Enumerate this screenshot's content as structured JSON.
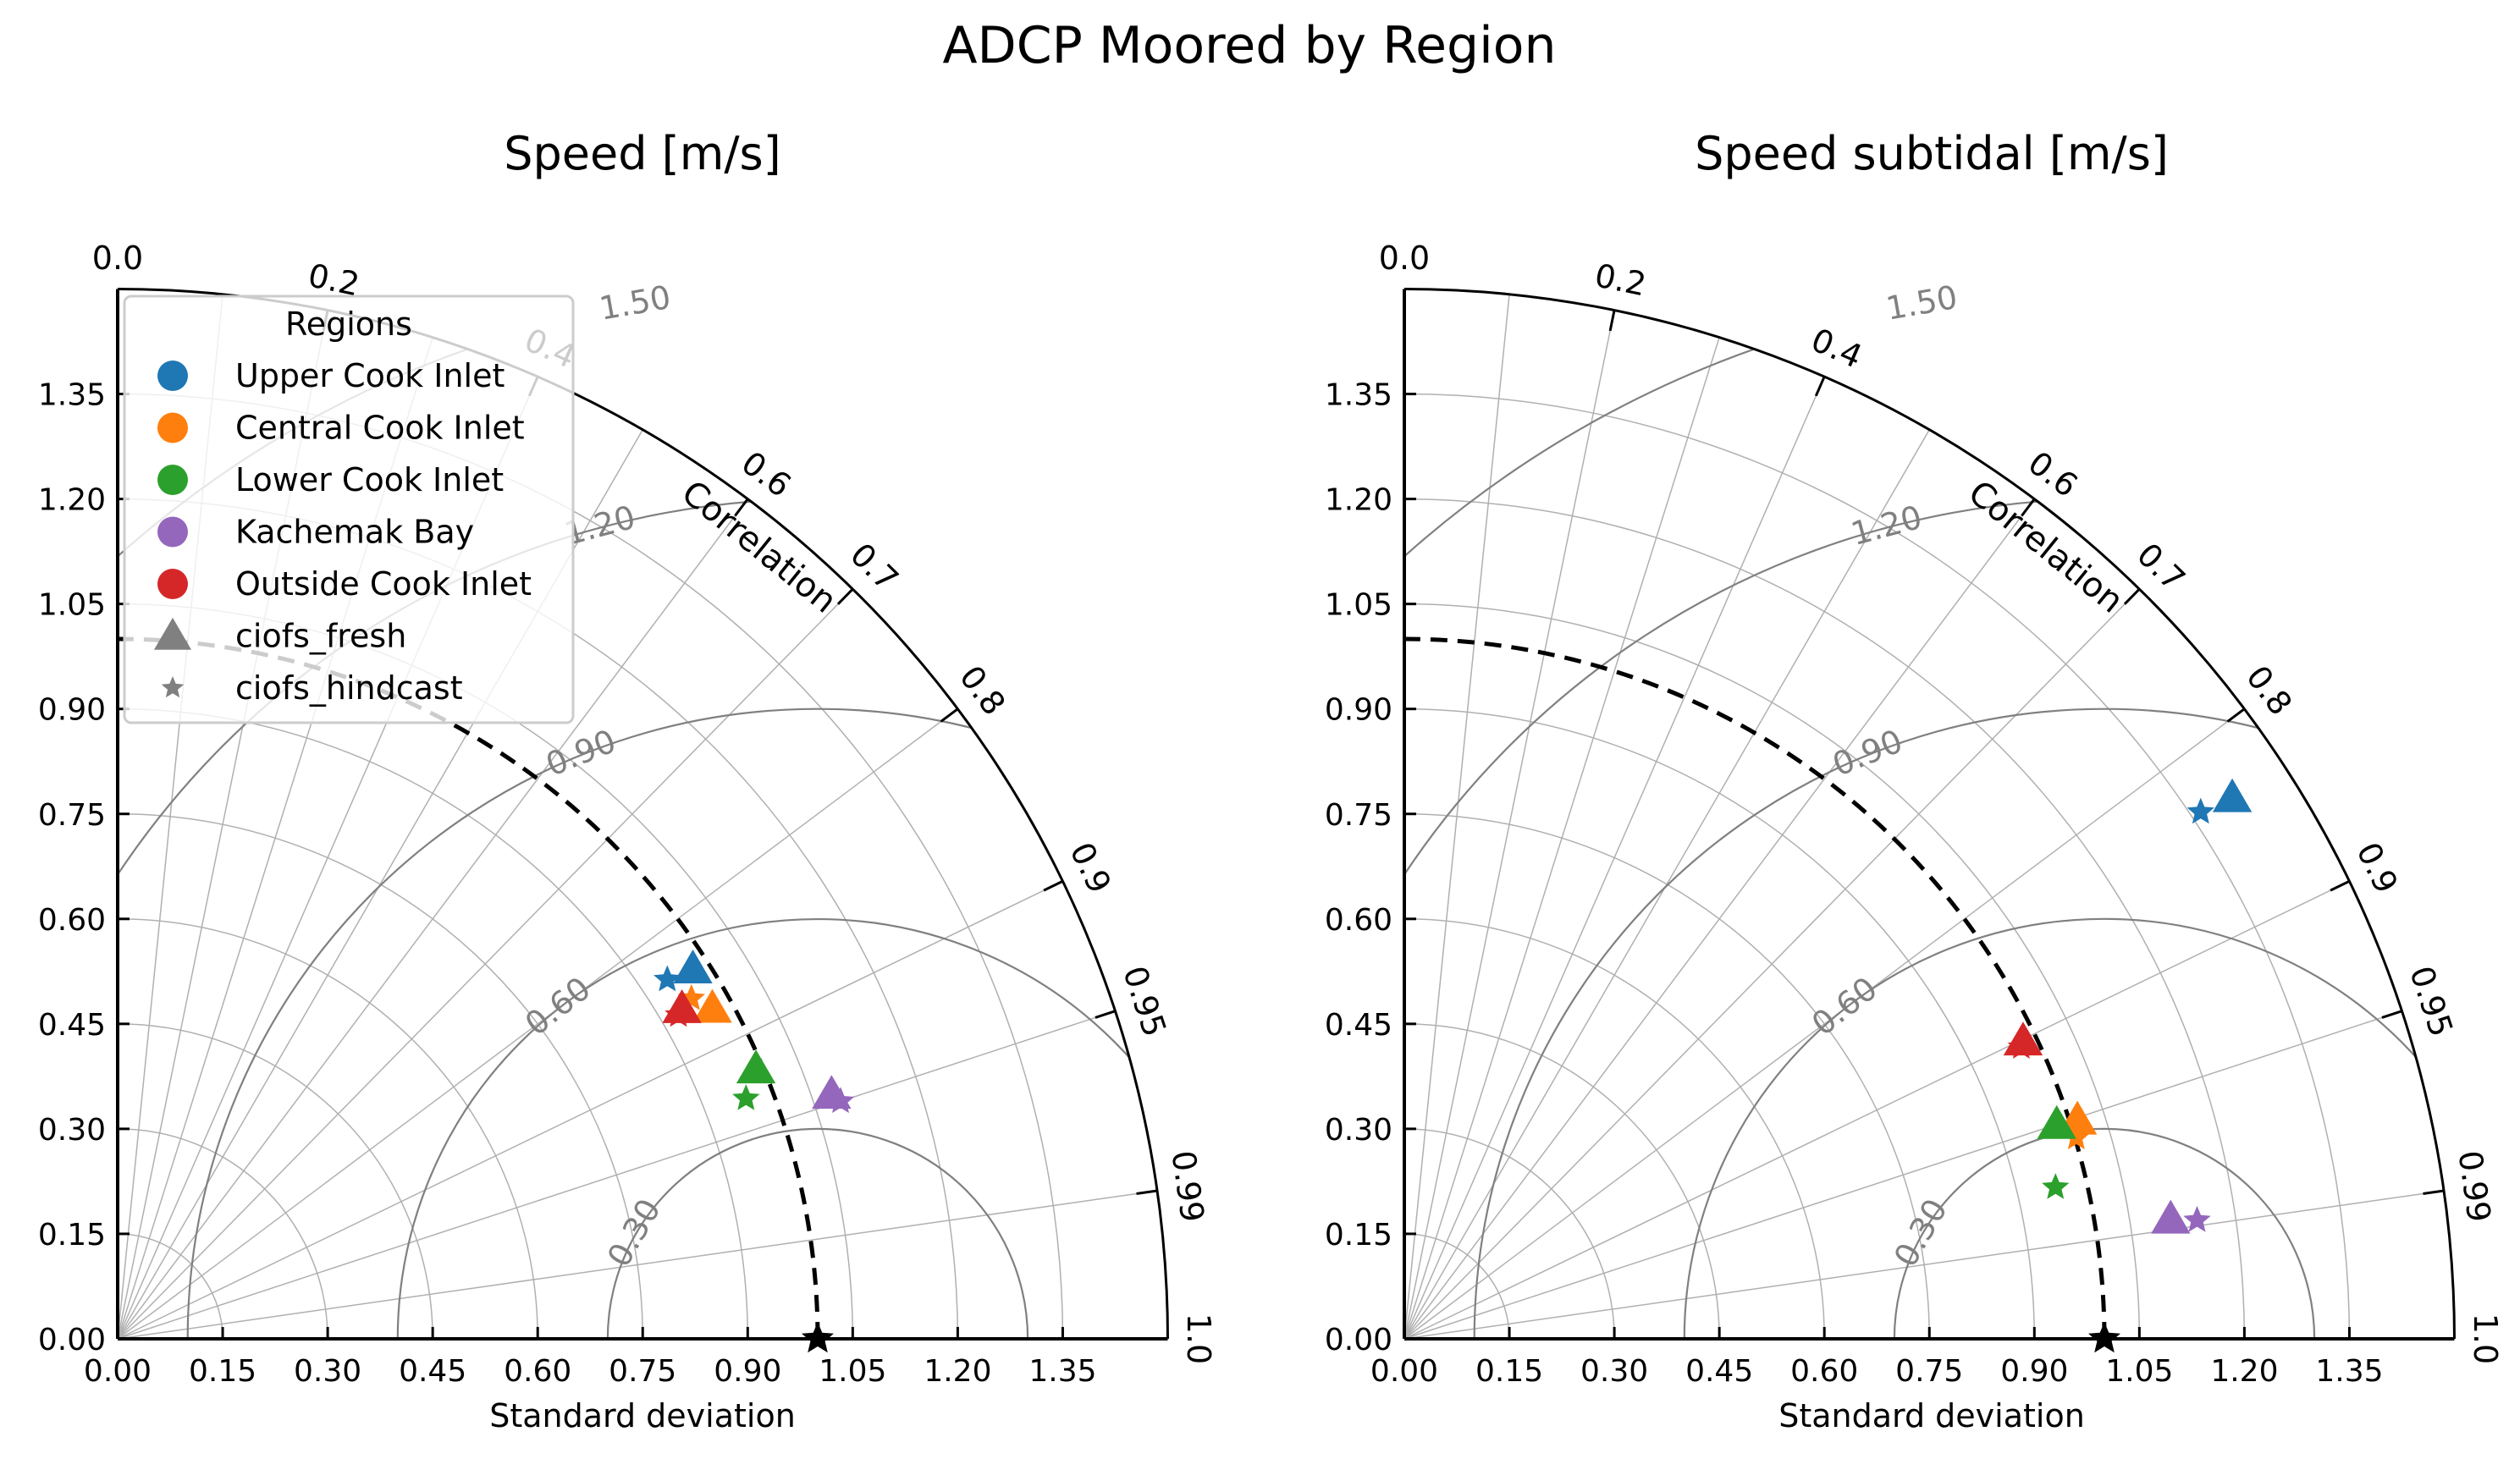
{
  "figure_title": "ADCP Moored by Region",
  "legend": {
    "title": "Regions",
    "regions": [
      {
        "name": "Upper Cook Inlet",
        "color": "#1f77b4"
      },
      {
        "name": "Central Cook Inlet",
        "color": "#ff7f0e"
      },
      {
        "name": "Lower Cook Inlet",
        "color": "#2ca02c"
      },
      {
        "name": "Kachemak Bay",
        "color": "#9467bd"
      },
      {
        "name": "Outside Cook Inlet",
        "color": "#d62728"
      }
    ],
    "models": [
      {
        "name": "ciofs_fresh",
        "marker": "triangle"
      },
      {
        "name": "ciofs_hindcast",
        "marker": "star"
      }
    ],
    "marker_color": "#808080"
  },
  "chart_data": [
    {
      "type": "scatter",
      "subtype": "taylor-diagram",
      "title": "Speed [m/s]",
      "xlabel": "Standard deviation",
      "ylabel": "",
      "angular_label": "Correlation",
      "std_range": [
        0,
        1.5
      ],
      "std_ticks": [
        "0.00",
        "0.15",
        "0.30",
        "0.45",
        "0.60",
        "0.75",
        "0.90",
        "1.05",
        "1.20",
        "1.35"
      ],
      "corr_ticks": [
        "0.0",
        "0.2",
        "0.4",
        "0.6",
        "0.7",
        "0.8",
        "0.9",
        "0.95",
        "0.99",
        "1.0"
      ],
      "rms_contours": [
        "0.30",
        "0.60",
        "0.90",
        "1.20",
        "1.50"
      ],
      "reference_std": 1.0,
      "legend_location": "upper-left",
      "grid": true,
      "series": [
        {
          "region": "Upper Cook Inlet",
          "model": "ciofs_fresh",
          "std": 0.977,
          "corr": 0.841
        },
        {
          "region": "Upper Cook Inlet",
          "model": "ciofs_hindcast",
          "std": 0.938,
          "corr": 0.837
        },
        {
          "region": "Central Cook Inlet",
          "model": "ciofs_fresh",
          "std": 0.972,
          "corr": 0.874
        },
        {
          "region": "Central Cook Inlet",
          "model": "ciofs_hindcast",
          "std": 0.953,
          "corr": 0.86
        },
        {
          "region": "Lower Cook Inlet",
          "model": "ciofs_fresh",
          "std": 0.99,
          "corr": 0.921
        },
        {
          "region": "Lower Cook Inlet",
          "model": "ciofs_hindcast",
          "std": 0.961,
          "corr": 0.934
        },
        {
          "region": "Kachemak Bay",
          "model": "ciofs_fresh",
          "std": 1.078,
          "corr": 0.946
        },
        {
          "region": "Kachemak Bay",
          "model": "ciofs_hindcast",
          "std": 1.087,
          "corr": 0.95
        },
        {
          "region": "Outside Cook Inlet",
          "model": "ciofs_fresh",
          "std": 0.934,
          "corr": 0.863
        },
        {
          "region": "Outside Cook Inlet",
          "model": "ciofs_hindcast",
          "std": 0.925,
          "corr": 0.866
        }
      ]
    },
    {
      "type": "scatter",
      "subtype": "taylor-diagram",
      "title": "Speed subtidal [m/s]",
      "xlabel": "Standard deviation",
      "ylabel": "",
      "angular_label": "Correlation",
      "std_range": [
        0,
        1.5
      ],
      "std_ticks": [
        "0.00",
        "0.15",
        "0.30",
        "0.45",
        "0.60",
        "0.75",
        "0.90",
        "1.05",
        "1.20",
        "1.35"
      ],
      "corr_ticks": [
        "0.0",
        "0.2",
        "0.4",
        "0.6",
        "0.7",
        "0.8",
        "0.9",
        "0.95",
        "0.99",
        "1.0"
      ],
      "rms_contours": [
        "0.30",
        "0.60",
        "0.90",
        "1.20",
        "1.50"
      ],
      "reference_std": 1.0,
      "legend_location": "none",
      "grid": true,
      "series": [
        {
          "region": "Upper Cook Inlet",
          "model": "ciofs_fresh",
          "std": 1.413,
          "corr": 0.837
        },
        {
          "region": "Upper Cook Inlet",
          "model": "ciofs_hindcast",
          "std": 1.364,
          "corr": 0.834
        },
        {
          "region": "Central Cook Inlet",
          "model": "ciofs_fresh",
          "std": 1.011,
          "corr": 0.951
        },
        {
          "region": "Central Cook Inlet",
          "model": "ciofs_hindcast",
          "std": 1.002,
          "corr": 0.958
        },
        {
          "region": "Lower Cook Inlet",
          "model": "ciofs_fresh",
          "std": 0.981,
          "corr": 0.95
        },
        {
          "region": "Lower Cook Inlet",
          "model": "ciofs_hindcast",
          "std": 0.955,
          "corr": 0.974
        },
        {
          "region": "Kachemak Bay",
          "model": "ciofs_fresh",
          "std": 1.108,
          "corr": 0.988
        },
        {
          "region": "Kachemak Bay",
          "model": "ciofs_hindcast",
          "std": 1.145,
          "corr": 0.989
        },
        {
          "region": "Outside Cook Inlet",
          "model": "ciofs_fresh",
          "std": 0.981,
          "corr": 0.901
        },
        {
          "region": "Outside Cook Inlet",
          "model": "ciofs_hindcast",
          "std": 0.975,
          "corr": 0.904
        }
      ]
    }
  ]
}
